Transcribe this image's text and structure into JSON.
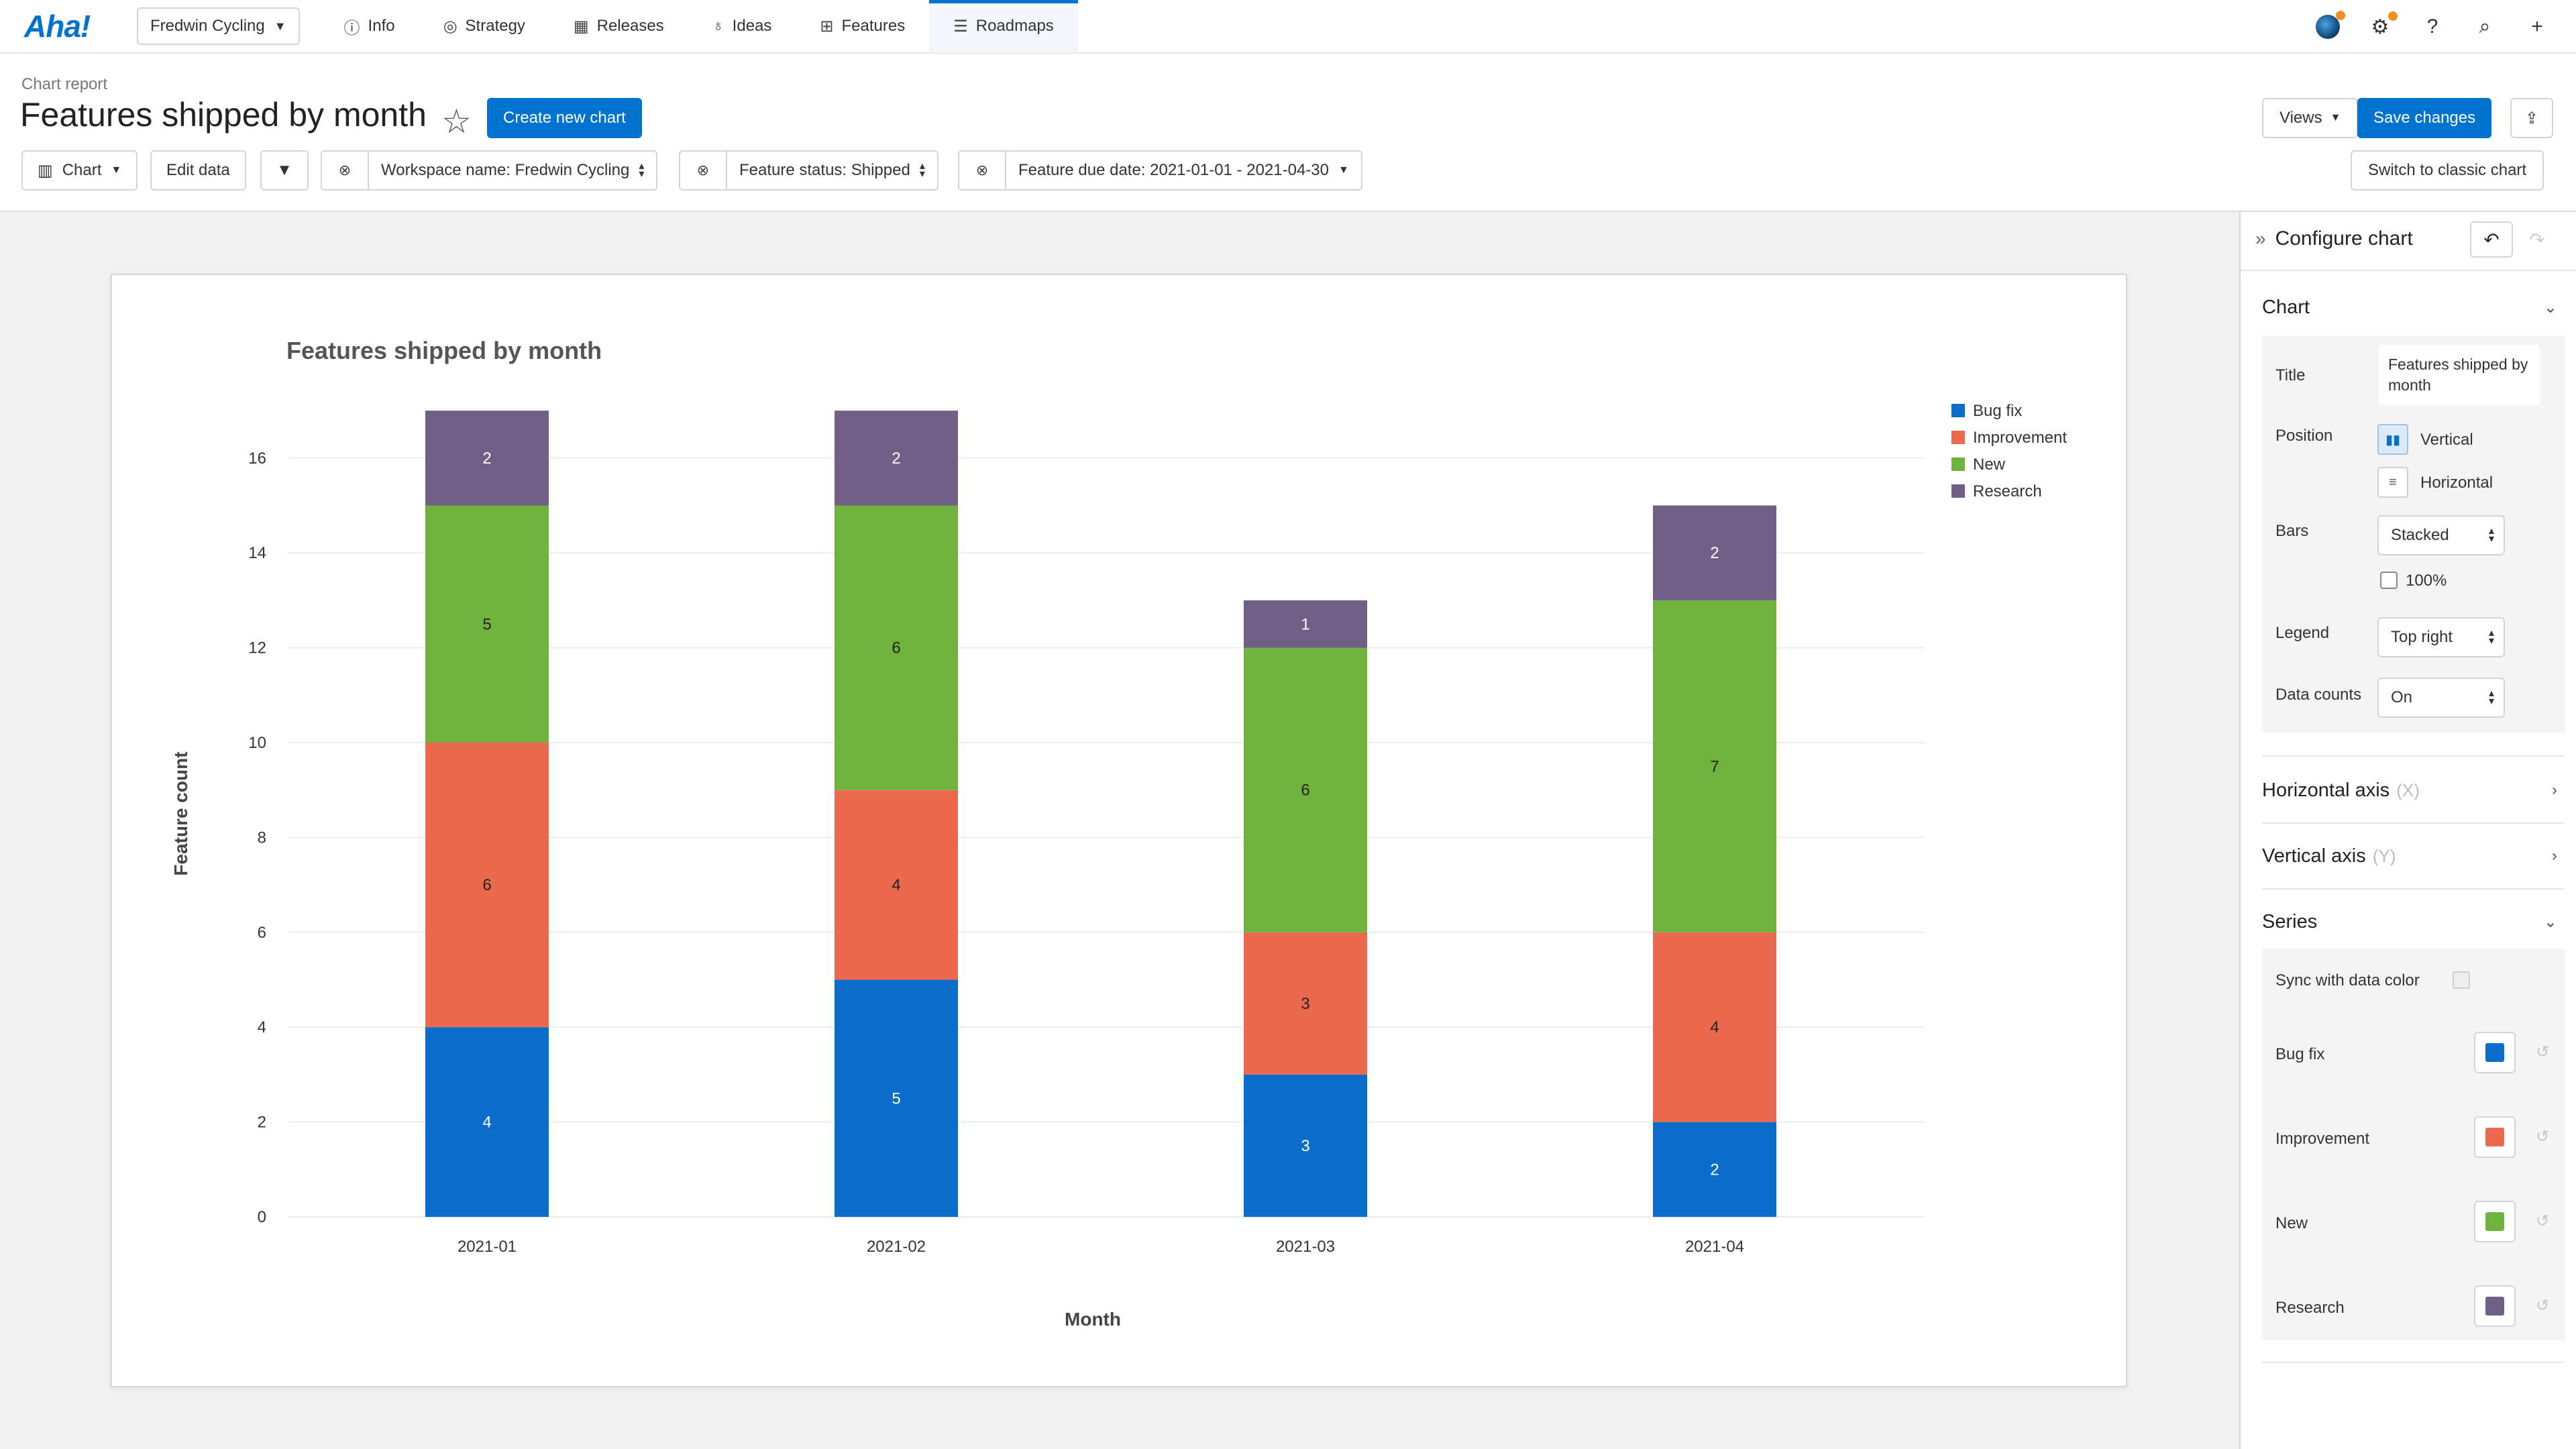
{
  "nav": {
    "logo": "Aha!",
    "workspace": "Fredwin Cycling",
    "tabs": [
      {
        "label": "Info",
        "icon": "info-icon"
      },
      {
        "label": "Strategy",
        "icon": "target-icon"
      },
      {
        "label": "Releases",
        "icon": "calendar-icon"
      },
      {
        "label": "Ideas",
        "icon": "lightbulb-icon"
      },
      {
        "label": "Features",
        "icon": "grid-icon"
      },
      {
        "label": "Roadmaps",
        "icon": "roadmap-icon"
      }
    ],
    "active_tab": "Roadmaps"
  },
  "header": {
    "breadcrumb": "Chart report",
    "title": "Features shipped by month",
    "create_button": "Create new chart",
    "views_button": "Views",
    "save_button": "Save changes",
    "chart_button": "Chart",
    "edit_data_button": "Edit data",
    "switch_button": "Switch to classic chart",
    "filters": [
      "Workspace name: Fredwin Cycling",
      "Feature status: Shipped",
      "Feature due date: 2021-01-01 - 2021-04-30"
    ]
  },
  "colors": {
    "accent": "#0073cf",
    "bug_fix": "#0a6dc9",
    "improvement": "#eb6a4f",
    "new": "#6fb33e",
    "research": "#715f87"
  },
  "chart_data": {
    "type": "bar",
    "stacked": true,
    "title": "Features shipped by month",
    "xlabel": "Month",
    "ylabel": "Feature count",
    "categories": [
      "2021-01",
      "2021-02",
      "2021-03",
      "2021-04"
    ],
    "yticks": [
      "0",
      "2",
      "4",
      "6",
      "8",
      "10",
      "12",
      "14",
      "16"
    ],
    "ylim": [
      0,
      17
    ],
    "legend_position": "top-right",
    "data_counts": true,
    "series": [
      {
        "name": "Bug fix",
        "values": [
          4,
          5,
          3,
          2
        ],
        "color": "#0a6dc9"
      },
      {
        "name": "Improvement",
        "values": [
          6,
          4,
          3,
          4
        ],
        "color": "#eb6a4f"
      },
      {
        "name": "New",
        "values": [
          5,
          6,
          6,
          7
        ],
        "color": "#6fb33e"
      },
      {
        "name": "Research",
        "values": [
          2,
          2,
          1,
          2
        ],
        "color": "#715f87"
      }
    ]
  },
  "panel": {
    "title": "Configure chart",
    "chart_section": "Chart",
    "title_label": "Title",
    "title_value": "Features shipped by month",
    "position_label": "Position",
    "position_vertical": "Vertical",
    "position_horizontal": "Horizontal",
    "bars_label": "Bars",
    "bars_value": "Stacked",
    "percent_label": "100%",
    "legend_label": "Legend",
    "legend_value": "Top right",
    "data_counts_label": "Data counts",
    "data_counts_value": "On",
    "h_axis": "Horizontal axis",
    "h_axis_sub": "(X)",
    "v_axis": "Vertical axis",
    "v_axis_sub": "(Y)",
    "series_section": "Series",
    "sync_label": "Sync with data color",
    "series": [
      "Bug fix",
      "Improvement",
      "New",
      "Research"
    ]
  }
}
